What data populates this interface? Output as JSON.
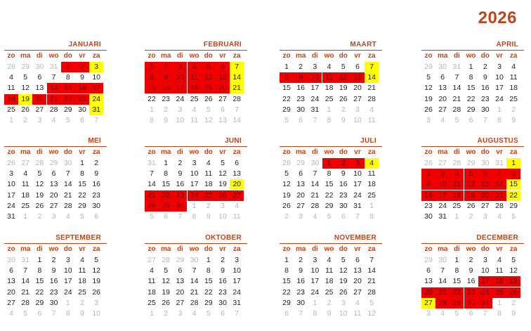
{
  "year": "2026",
  "weekdays": [
    "zo",
    "ma",
    "di",
    "wo",
    "do",
    "vr",
    "za"
  ],
  "colors": {
    "accent": "#c0441a",
    "holiday_red": "#ee0000",
    "holiday_yellow": "#ffff00"
  },
  "months": [
    {
      "name": "JANUARI",
      "rows": [
        [
          "28",
          "29",
          "30",
          "31",
          "1",
          "2",
          "3"
        ],
        [
          "4",
          "5",
          "6",
          "7",
          "8",
          "9",
          "10"
        ],
        [
          "11",
          "12",
          "13",
          "14",
          "15",
          "16",
          "17"
        ],
        [
          "18",
          "19",
          "20",
          "21",
          "22",
          "23",
          "24"
        ],
        [
          "25",
          "26",
          "27",
          "28",
          "29",
          "30",
          "31"
        ],
        [
          "1",
          "2",
          "3",
          "4",
          "5",
          "6",
          "7"
        ]
      ],
      "marks": [
        [
          "o",
          "o",
          "o",
          "o",
          "r",
          "r",
          "y"
        ],
        [
          "",
          "",
          "",
          "",
          "",
          "",
          ""
        ],
        [
          "",
          "",
          "",
          "r",
          "r",
          "r",
          "r"
        ],
        [
          "r",
          "y",
          "r",
          "r",
          "r",
          "r",
          "y"
        ],
        [
          "",
          "",
          "",
          "",
          "",
          "",
          "y"
        ],
        [
          "o",
          "o",
          "o",
          "o",
          "o",
          "o",
          "o"
        ]
      ]
    },
    {
      "name": "FEBRUARI",
      "rows": [
        [
          "1",
          "2",
          "3",
          "4",
          "5",
          "6",
          "7"
        ],
        [
          "8",
          "9",
          "10",
          "11",
          "12",
          "13",
          "14"
        ],
        [
          "15",
          "16",
          "17",
          "18",
          "19",
          "20",
          "21"
        ],
        [
          "22",
          "23",
          "24",
          "25",
          "26",
          "27",
          "28"
        ],
        [
          "1",
          "2",
          "3",
          "4",
          "5",
          "6",
          "7"
        ],
        [
          "8",
          "9",
          "10",
          "11",
          "12",
          "13",
          "14"
        ]
      ],
      "marks": [
        [
          "r",
          "r",
          "r",
          "r",
          "r",
          "r",
          "y"
        ],
        [
          "r",
          "r",
          "r",
          "r",
          "r",
          "r",
          "y"
        ],
        [
          "r",
          "r",
          "r",
          "r",
          "r",
          "r",
          "y"
        ],
        [
          "",
          "",
          "",
          "",
          "",
          "",
          ""
        ],
        [
          "o",
          "o",
          "o",
          "o",
          "o",
          "o",
          "o"
        ],
        [
          "o",
          "o",
          "o",
          "o",
          "o",
          "o",
          "o"
        ]
      ]
    },
    {
      "name": "MAART",
      "rows": [
        [
          "1",
          "2",
          "3",
          "4",
          "5",
          "6",
          "7"
        ],
        [
          "8",
          "9",
          "10",
          "11",
          "12",
          "13",
          "14"
        ],
        [
          "15",
          "16",
          "17",
          "18",
          "19",
          "20",
          "21"
        ],
        [
          "22",
          "23",
          "24",
          "25",
          "26",
          "27",
          "28"
        ],
        [
          "29",
          "30",
          "31",
          "1",
          "2",
          "3",
          "4"
        ],
        [
          "5",
          "6",
          "7",
          "8",
          "9",
          "10",
          "11"
        ]
      ],
      "marks": [
        [
          "",
          "",
          "",
          "",
          "",
          "",
          "y"
        ],
        [
          "r",
          "r",
          "r",
          "r",
          "r",
          "r",
          "y"
        ],
        [
          "",
          "",
          "",
          "",
          "",
          "",
          ""
        ],
        [
          "",
          "",
          "",
          "",
          "",
          "",
          ""
        ],
        [
          "",
          "",
          "",
          "o",
          "o",
          "o",
          "o"
        ],
        [
          "o",
          "o",
          "o",
          "o",
          "o",
          "o",
          "o"
        ]
      ]
    },
    {
      "name": "APRIL",
      "rows": [
        [
          "29",
          "30",
          "31",
          "1",
          "2",
          "3",
          "4"
        ],
        [
          "5",
          "6",
          "7",
          "8",
          "9",
          "10",
          "11"
        ],
        [
          "12",
          "13",
          "14",
          "15",
          "16",
          "17",
          "18"
        ],
        [
          "19",
          "20",
          "21",
          "22",
          "23",
          "24",
          "25"
        ],
        [
          "26",
          "27",
          "28",
          "29",
          "30",
          "1",
          "2"
        ],
        [
          "3",
          "4",
          "5",
          "6",
          "7",
          "8",
          "9"
        ]
      ],
      "marks": [
        [
          "o",
          "o",
          "o",
          "",
          "",
          "",
          ""
        ],
        [
          "",
          "",
          "",
          "",
          "",
          "",
          ""
        ],
        [
          "",
          "",
          "",
          "",
          "",
          "",
          ""
        ],
        [
          "",
          "",
          "",
          "",
          "",
          "",
          ""
        ],
        [
          "",
          "",
          "",
          "",
          "",
          "o",
          "o"
        ],
        [
          "o",
          "o",
          "o",
          "o",
          "o",
          "o",
          "o"
        ]
      ]
    },
    {
      "name": "MEI",
      "rows": [
        [
          "26",
          "27",
          "28",
          "29",
          "30",
          "1",
          "2"
        ],
        [
          "3",
          "4",
          "5",
          "6",
          "7",
          "8",
          "9"
        ],
        [
          "10",
          "11",
          "12",
          "13",
          "14",
          "15",
          "16"
        ],
        [
          "17",
          "18",
          "19",
          "20",
          "21",
          "22",
          "23"
        ],
        [
          "24",
          "25",
          "26",
          "27",
          "28",
          "29",
          "30"
        ],
        [
          "31",
          "1",
          "2",
          "3",
          "4",
          "5",
          "6"
        ]
      ],
      "marks": [
        [
          "o",
          "o",
          "o",
          "o",
          "o",
          "",
          ""
        ],
        [
          "",
          "",
          "",
          "",
          "",
          "",
          ""
        ],
        [
          "",
          "",
          "",
          "",
          "",
          "",
          ""
        ],
        [
          "",
          "",
          "",
          "",
          "",
          "",
          ""
        ],
        [
          "",
          "",
          "",
          "",
          "",
          "",
          ""
        ],
        [
          "",
          "o",
          "o",
          "o",
          "o",
          "o",
          "o"
        ]
      ]
    },
    {
      "name": "JUNI",
      "rows": [
        [
          "31",
          "1",
          "2",
          "3",
          "4",
          "5",
          "6"
        ],
        [
          "7",
          "8",
          "9",
          "10",
          "11",
          "12",
          "13"
        ],
        [
          "14",
          "15",
          "16",
          "17",
          "18",
          "19",
          "20"
        ],
        [
          "21",
          "22",
          "23",
          "24",
          "25",
          "26",
          "27"
        ],
        [
          "28",
          "29",
          "30",
          "1",
          "2",
          "3",
          "4"
        ],
        [
          "5",
          "6",
          "7",
          "8",
          "9",
          "10",
          "11"
        ]
      ],
      "marks": [
        [
          "o",
          "",
          "",
          "",
          "",
          "",
          ""
        ],
        [
          "",
          "",
          "",
          "",
          "",
          "",
          ""
        ],
        [
          "",
          "",
          "",
          "",
          "",
          "",
          "y"
        ],
        [
          "r",
          "r",
          "r",
          "r",
          "r",
          "r",
          "r"
        ],
        [
          "r",
          "r",
          "r",
          "o",
          "o",
          "o",
          "o"
        ],
        [
          "o",
          "o",
          "o",
          "o",
          "o",
          "o",
          "o"
        ]
      ]
    },
    {
      "name": "JULI",
      "rows": [
        [
          "28",
          "29",
          "30",
          "1",
          "2",
          "3",
          "4"
        ],
        [
          "5",
          "6",
          "7",
          "8",
          "9",
          "10",
          "11"
        ],
        [
          "12",
          "13",
          "14",
          "15",
          "16",
          "17",
          "18"
        ],
        [
          "19",
          "20",
          "21",
          "22",
          "23",
          "24",
          "25"
        ],
        [
          "26",
          "27",
          "28",
          "29",
          "30",
          "31",
          "1"
        ],
        [
          "2",
          "3",
          "4",
          "5",
          "6",
          "7",
          "8"
        ]
      ],
      "marks": [
        [
          "o",
          "o",
          "o",
          "r",
          "r",
          "r",
          "y"
        ],
        [
          "",
          "",
          "",
          "",
          "",
          "",
          ""
        ],
        [
          "",
          "",
          "",
          "",
          "",
          "",
          ""
        ],
        [
          "",
          "",
          "",
          "",
          "",
          "",
          ""
        ],
        [
          "",
          "",
          "",
          "",
          "",
          "",
          "o"
        ],
        [
          "o",
          "o",
          "o",
          "o",
          "o",
          "o",
          "o"
        ]
      ]
    },
    {
      "name": "AUGUSTUS",
      "rows": [
        [
          "26",
          "27",
          "28",
          "29",
          "30",
          "31",
          "1"
        ],
        [
          "2",
          "3",
          "4",
          "5",
          "6",
          "7",
          "8"
        ],
        [
          "9",
          "10",
          "11",
          "12",
          "13",
          "14",
          "15"
        ],
        [
          "16",
          "17",
          "18",
          "19",
          "20",
          "21",
          "22"
        ],
        [
          "23",
          "24",
          "25",
          "26",
          "27",
          "28",
          "29"
        ],
        [
          "30",
          "31",
          "1",
          "2",
          "3",
          "4",
          "5"
        ]
      ],
      "marks": [
        [
          "o",
          "o",
          "o",
          "o",
          "o",
          "o",
          "y"
        ],
        [
          "r",
          "r",
          "r",
          "r",
          "r",
          "r",
          "r"
        ],
        [
          "r",
          "r",
          "r",
          "r",
          "r",
          "r",
          "y"
        ],
        [
          "r",
          "r",
          "r",
          "r",
          "r",
          "r",
          "y"
        ],
        [
          "",
          "",
          "",
          "",
          "",
          "",
          ""
        ],
        [
          "",
          "",
          "o",
          "o",
          "o",
          "o",
          "o"
        ]
      ]
    },
    {
      "name": "SEPTEMBER",
      "rows": [
        [
          "30",
          "31",
          "1",
          "2",
          "3",
          "4",
          "5"
        ],
        [
          "6",
          "7",
          "8",
          "9",
          "10",
          "11",
          "12"
        ],
        [
          "13",
          "14",
          "15",
          "16",
          "17",
          "18",
          "19"
        ],
        [
          "20",
          "21",
          "22",
          "23",
          "24",
          "25",
          "26"
        ],
        [
          "27",
          "28",
          "29",
          "30",
          "1",
          "2",
          "3"
        ],
        [
          "4",
          "5",
          "6",
          "7",
          "8",
          "9",
          "10"
        ]
      ],
      "marks": [
        [
          "o",
          "o",
          "",
          "",
          "",
          "",
          ""
        ],
        [
          "",
          "",
          "",
          "",
          "",
          "",
          ""
        ],
        [
          "",
          "",
          "",
          "",
          "",
          "",
          ""
        ],
        [
          "",
          "",
          "",
          "",
          "",
          "",
          ""
        ],
        [
          "",
          "",
          "",
          "",
          "o",
          "o",
          "o"
        ],
        [
          "o",
          "o",
          "o",
          "o",
          "o",
          "o",
          "o"
        ]
      ]
    },
    {
      "name": "OKTOBER",
      "rows": [
        [
          "27",
          "28",
          "29",
          "30",
          "1",
          "2",
          "3"
        ],
        [
          "4",
          "5",
          "6",
          "7",
          "8",
          "9",
          "10"
        ],
        [
          "11",
          "12",
          "13",
          "14",
          "15",
          "16",
          "17"
        ],
        [
          "18",
          "19",
          "20",
          "21",
          "22",
          "23",
          "24"
        ],
        [
          "25",
          "26",
          "27",
          "28",
          "29",
          "30",
          "31"
        ],
        [
          "1",
          "2",
          "3",
          "4",
          "5",
          "6",
          "7"
        ]
      ],
      "marks": [
        [
          "o",
          "o",
          "o",
          "o",
          "",
          "",
          ""
        ],
        [
          "",
          "",
          "",
          "",
          "",
          "",
          ""
        ],
        [
          "",
          "",
          "",
          "",
          "",
          "",
          ""
        ],
        [
          "",
          "",
          "",
          "",
          "",
          "",
          ""
        ],
        [
          "",
          "",
          "",
          "",
          "",
          "",
          ""
        ],
        [
          "o",
          "o",
          "o",
          "o",
          "o",
          "o",
          "o"
        ]
      ]
    },
    {
      "name": "NOVEMBER",
      "rows": [
        [
          "1",
          "2",
          "3",
          "4",
          "5",
          "6",
          "7"
        ],
        [
          "8",
          "9",
          "10",
          "11",
          "12",
          "13",
          "14"
        ],
        [
          "15",
          "16",
          "17",
          "18",
          "19",
          "20",
          "21"
        ],
        [
          "22",
          "23",
          "24",
          "25",
          "26",
          "27",
          "28"
        ],
        [
          "29",
          "30",
          "1",
          "2",
          "3",
          "4",
          "5"
        ],
        [
          "6",
          "7",
          "8",
          "9",
          "10",
          "11",
          "12"
        ]
      ],
      "marks": [
        [
          "",
          "",
          "",
          "",
          "",
          "",
          ""
        ],
        [
          "",
          "",
          "",
          "",
          "",
          "",
          ""
        ],
        [
          "",
          "",
          "",
          "",
          "",
          "",
          ""
        ],
        [
          "",
          "",
          "",
          "",
          "",
          "",
          ""
        ],
        [
          "",
          "",
          "o",
          "o",
          "o",
          "o",
          "o"
        ],
        [
          "o",
          "o",
          "o",
          "o",
          "o",
          "o",
          "o"
        ]
      ]
    },
    {
      "name": "DECEMBER",
      "rows": [
        [
          "29",
          "30",
          "1",
          "2",
          "3",
          "4",
          "5"
        ],
        [
          "6",
          "7",
          "8",
          "9",
          "10",
          "11",
          "12"
        ],
        [
          "13",
          "14",
          "15",
          "16",
          "17",
          "18",
          "19"
        ],
        [
          "20",
          "21",
          "22",
          "23",
          "24",
          "25",
          "26"
        ],
        [
          "27",
          "28",
          "29",
          "30",
          "31",
          "1",
          "2"
        ],
        [
          "3",
          "4",
          "5",
          "6",
          "7",
          "8",
          "9"
        ]
      ],
      "marks": [
        [
          "o",
          "o",
          "",
          "",
          "",
          "",
          ""
        ],
        [
          "",
          "",
          "",
          "",
          "",
          "",
          ""
        ],
        [
          "",
          "",
          "",
          "",
          "r",
          "r",
          "r"
        ],
        [
          "r",
          "r",
          "r",
          "r",
          "r",
          "r",
          "r"
        ],
        [
          "y",
          "r",
          "r",
          "r",
          "r",
          "o",
          "o"
        ],
        [
          "o",
          "o",
          "o",
          "o",
          "o",
          "o",
          "o"
        ]
      ]
    }
  ]
}
